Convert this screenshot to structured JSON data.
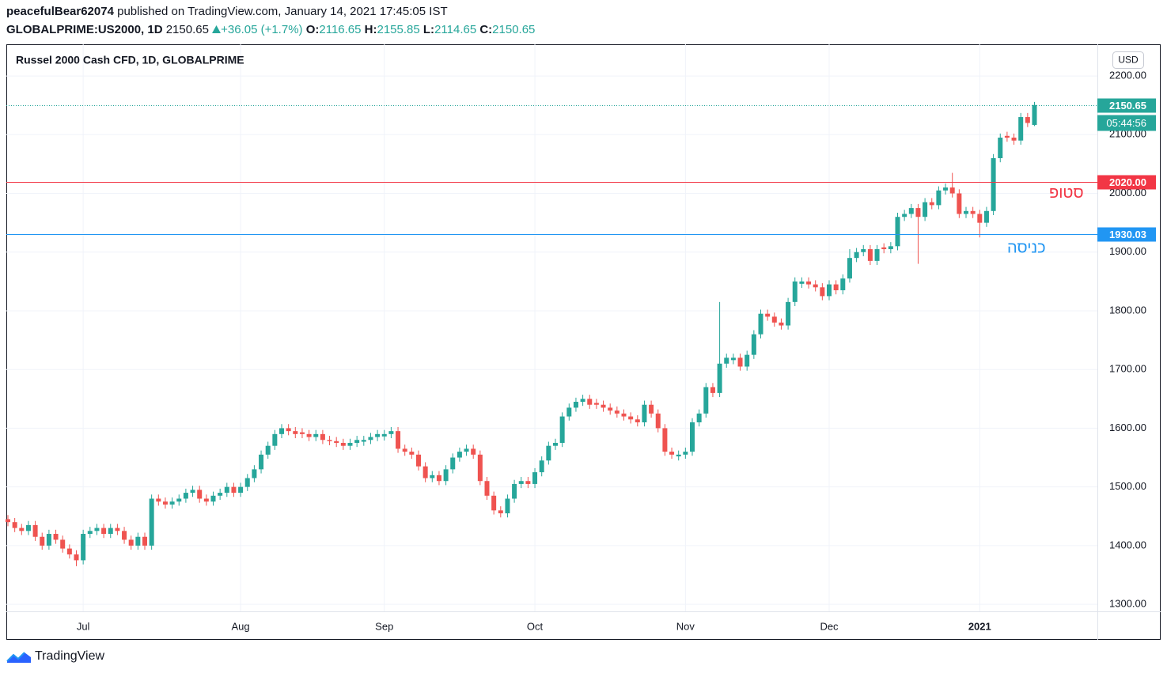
{
  "header": {
    "user": "peacefulBear62074",
    "published": "published on TradingView.com, January 14, 2021 17:45:05 IST",
    "symbol": "GLOBALPRIME:US2000, 1D",
    "last": "2150.65",
    "change": "+36.05 (+1.7%)",
    "ohlc": [
      {
        "label": "O:",
        "value": "2116.65"
      },
      {
        "label": "H:",
        "value": "2155.85"
      },
      {
        "label": "L:",
        "value": "2114.65"
      },
      {
        "label": "C:",
        "value": "2150.65"
      }
    ]
  },
  "chart_data": {
    "type": "candlestick",
    "title": "Russel 2000 Cash CFD, 1D, GLOBALPRIME",
    "currency": "USD",
    "up_color": "#26a69a",
    "down_color": "#ef5350",
    "grid": true,
    "categories": [
      null,
      null,
      null,
      null,
      null,
      null,
      null,
      null,
      null,
      null,
      null,
      "Jul",
      null,
      null,
      null,
      null,
      null,
      null,
      null,
      null,
      null,
      null,
      null,
      null,
      null,
      null,
      null,
      null,
      null,
      null,
      null,
      null,
      null,
      null,
      "Aug",
      null,
      null,
      null,
      null,
      null,
      null,
      null,
      null,
      null,
      null,
      null,
      null,
      null,
      null,
      null,
      null,
      null,
      null,
      null,
      null,
      "Sep",
      null,
      null,
      null,
      null,
      null,
      null,
      null,
      null,
      null,
      null,
      null,
      null,
      null,
      null,
      null,
      null,
      null,
      null,
      null,
      null,
      null,
      "Oct",
      null,
      null,
      null,
      null,
      null,
      null,
      null,
      null,
      null,
      null,
      null,
      null,
      null,
      null,
      null,
      null,
      null,
      null,
      null,
      null,
      null,
      "Nov",
      null,
      null,
      null,
      null,
      null,
      null,
      null,
      null,
      null,
      null,
      null,
      null,
      null,
      null,
      null,
      null,
      null,
      null,
      null,
      null,
      "Dec",
      null,
      null,
      null,
      null,
      null,
      null,
      null,
      null,
      null,
      null,
      null,
      null,
      null,
      null,
      null,
      null,
      null,
      null,
      null,
      null,
      null,
      "2021",
      null,
      null,
      null,
      null,
      null,
      null,
      null,
      null
    ],
    "open": [
      1445,
      1440,
      1430,
      1425,
      1435,
      1415,
      1400,
      1420,
      1410,
      1395,
      1385,
      1375,
      1420,
      1425,
      1430,
      1420,
      1430,
      1425,
      1410,
      1400,
      1415,
      1400,
      1480,
      1475,
      1470,
      1475,
      1480,
      1490,
      1495,
      1480,
      1475,
      1485,
      1490,
      1500,
      1490,
      1500,
      1515,
      1530,
      1555,
      1570,
      1590,
      1600,
      1595,
      1593,
      1590,
      1585,
      1590,
      1580,
      1578,
      1575,
      1570,
      1575,
      1577,
      1580,
      1585,
      1586,
      1590,
      1595,
      1565,
      1560,
      1555,
      1535,
      1515,
      1520,
      1510,
      1530,
      1550,
      1560,
      1565,
      1555,
      1510,
      1485,
      1460,
      1455,
      1480,
      1505,
      1510,
      1505,
      1525,
      1545,
      1570,
      1575,
      1620,
      1635,
      1645,
      1650,
      1643,
      1640,
      1635,
      1630,
      1625,
      1620,
      1615,
      1610,
      1640,
      1625,
      1600,
      1560,
      1552,
      1555,
      1560,
      1610,
      1625,
      1670,
      1660,
      1710,
      1716,
      1720,
      1705,
      1725,
      1760,
      1795,
      1790,
      1780,
      1775,
      1815,
      1846,
      1850,
      1845,
      1840,
      1825,
      1845,
      1835,
      1855,
      1890,
      1900,
      1905,
      1885,
      1908,
      1905,
      1910,
      1960,
      1965,
      1975,
      1960,
      1985,
      1980,
      2005,
      2010,
      2000,
      1965,
      1970,
      1965,
      1950,
      1970,
      2060,
      2098,
      2095,
      2090,
      2130,
      2116.65
    ],
    "high": [
      1452,
      1447,
      1437,
      1442,
      1442,
      1422,
      1427,
      1427,
      1417,
      1402,
      1392,
      1427,
      1432,
      1437,
      1437,
      1437,
      1437,
      1432,
      1417,
      1422,
      1422,
      1487,
      1487,
      1482,
      1482,
      1487,
      1497,
      1502,
      1502,
      1487,
      1492,
      1497,
      1507,
      1507,
      1507,
      1522,
      1537,
      1562,
      1577,
      1597,
      1607,
      1607,
      1602,
      1600,
      1597,
      1597,
      1597,
      1587,
      1585,
      1582,
      1582,
      1587,
      1587,
      1592,
      1597,
      1597,
      1602,
      1602,
      1572,
      1567,
      1562,
      1542,
      1527,
      1527,
      1537,
      1557,
      1567,
      1572,
      1572,
      1562,
      1517,
      1492,
      1467,
      1487,
      1512,
      1517,
      1517,
      1532,
      1552,
      1577,
      1582,
      1627,
      1642,
      1652,
      1657,
      1657,
      1650,
      1647,
      1642,
      1637,
      1632,
      1627,
      1622,
      1647,
      1647,
      1632,
      1607,
      1567,
      1562,
      1567,
      1617,
      1632,
      1677,
      1677,
      1815,
      1727,
      1727,
      1727,
      1732,
      1767,
      1802,
      1802,
      1797,
      1787,
      1822,
      1857,
      1857,
      1857,
      1852,
      1847,
      1852,
      1852,
      1862,
      1905,
      1907,
      1912,
      1912,
      1912,
      1915,
      1917,
      1967,
      1972,
      1982,
      1982,
      1992,
      1992,
      2012,
      2017,
      2035,
      2007,
      1977,
      1977,
      1972,
      1977,
      2067,
      2102,
      2105,
      2102,
      2137,
      2137,
      2155.85
    ],
    "low": [
      1433,
      1423,
      1418,
      1418,
      1408,
      1393,
      1393,
      1403,
      1388,
      1378,
      1365,
      1368,
      1413,
      1418,
      1413,
      1413,
      1418,
      1403,
      1393,
      1393,
      1393,
      1393,
      1468,
      1463,
      1463,
      1468,
      1473,
      1483,
      1473,
      1468,
      1468,
      1478,
      1483,
      1483,
      1483,
      1493,
      1508,
      1523,
      1548,
      1563,
      1583,
      1588,
      1583,
      1583,
      1578,
      1578,
      1573,
      1571,
      1568,
      1563,
      1563,
      1568,
      1570,
      1573,
      1578,
      1579,
      1583,
      1558,
      1553,
      1548,
      1528,
      1508,
      1508,
      1503,
      1503,
      1523,
      1543,
      1553,
      1548,
      1503,
      1478,
      1453,
      1448,
      1448,
      1473,
      1498,
      1498,
      1498,
      1518,
      1538,
      1563,
      1568,
      1613,
      1628,
      1638,
      1633,
      1633,
      1628,
      1623,
      1618,
      1613,
      1608,
      1603,
      1603,
      1618,
      1593,
      1553,
      1548,
      1545,
      1548,
      1553,
      1603,
      1618,
      1653,
      1653,
      1703,
      1709,
      1698,
      1698,
      1718,
      1753,
      1783,
      1773,
      1768,
      1768,
      1808,
      1839,
      1838,
      1833,
      1818,
      1818,
      1828,
      1828,
      1848,
      1883,
      1893,
      1878,
      1878,
      1898,
      1898,
      1903,
      1953,
      1958,
      1880,
      1953,
      1973,
      1973,
      1998,
      1993,
      1958,
      1958,
      1958,
      1925,
      1943,
      1963,
      2053,
      2088,
      2083,
      2083,
      2113,
      2114.65
    ],
    "close": [
      1440,
      1430,
      1425,
      1435,
      1415,
      1400,
      1420,
      1410,
      1395,
      1385,
      1375,
      1420,
      1425,
      1430,
      1420,
      1430,
      1425,
      1410,
      1400,
      1415,
      1400,
      1480,
      1475,
      1470,
      1475,
      1480,
      1490,
      1495,
      1480,
      1475,
      1485,
      1490,
      1500,
      1490,
      1500,
      1515,
      1530,
      1555,
      1570,
      1590,
      1600,
      1595,
      1590,
      1590,
      1585,
      1590,
      1580,
      1578,
      1575,
      1570,
      1575,
      1580,
      1580,
      1585,
      1590,
      1590,
      1595,
      1565,
      1560,
      1555,
      1535,
      1515,
      1520,
      1510,
      1530,
      1550,
      1560,
      1565,
      1555,
      1510,
      1485,
      1460,
      1455,
      1480,
      1505,
      1510,
      1505,
      1525,
      1545,
      1570,
      1575,
      1620,
      1635,
      1645,
      1650,
      1640,
      1640,
      1635,
      1630,
      1625,
      1620,
      1615,
      1610,
      1640,
      1625,
      1600,
      1560,
      1555,
      1555,
      1560,
      1610,
      1625,
      1670,
      1660,
      1710,
      1720,
      1720,
      1705,
      1725,
      1760,
      1795,
      1790,
      1780,
      1775,
      1815,
      1850,
      1850,
      1845,
      1840,
      1825,
      1845,
      1835,
      1855,
      1890,
      1900,
      1905,
      1885,
      1905,
      1905,
      1910,
      1960,
      1965,
      1975,
      1960,
      1985,
      1980,
      2005,
      2010,
      2000,
      1965,
      1970,
      1965,
      1950,
      1970,
      2060,
      2095,
      2095,
      2090,
      2130,
      2120,
      2150.65
    ],
    "ylim": [
      1288,
      2254
    ],
    "yticks": [
      {
        "value": 1300,
        "label": "1300.00"
      },
      {
        "value": 1400,
        "label": "1400.00"
      },
      {
        "value": 1500,
        "label": "1500.00"
      },
      {
        "value": 1600,
        "label": "1600.00"
      },
      {
        "value": 1700,
        "label": "1700.00"
      },
      {
        "value": 1800,
        "label": "1800.00"
      },
      {
        "value": 1900,
        "label": "1900.00"
      },
      {
        "value": 2000,
        "label": "2000.00"
      },
      {
        "value": 2100,
        "label": "2100.00"
      },
      {
        "value": 2200,
        "label": "2200.00"
      }
    ],
    "last_price": {
      "value": 2150.65,
      "label": "2150.65",
      "countdown": "05:44:56",
      "color": "#26a69a"
    },
    "hlines": [
      {
        "value": 2020,
        "label": "2020.00",
        "color": "#f23645",
        "text": "סטופ"
      },
      {
        "value": 1930.03,
        "label": "1930.03",
        "color": "#2196f3",
        "text": "כניסה"
      }
    ]
  },
  "footer": {
    "brand": "TradingView"
  }
}
